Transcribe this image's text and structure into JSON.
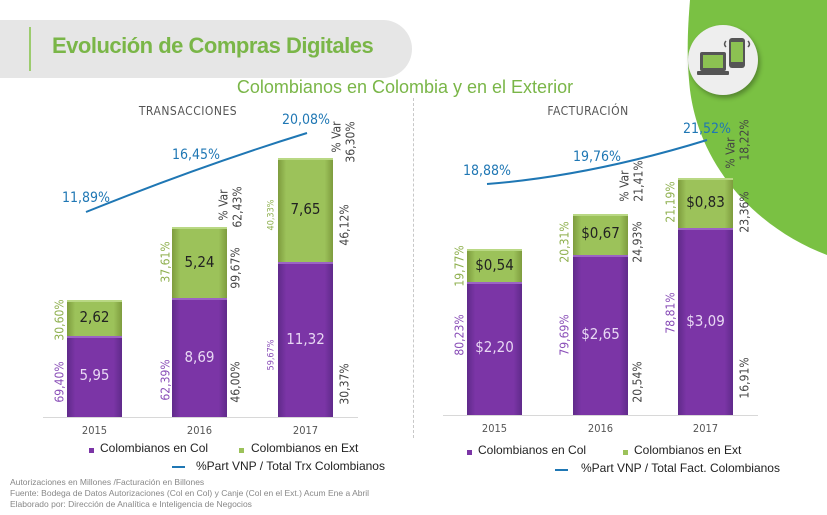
{
  "header": {
    "title": "Evolución de Compras Digitales",
    "subtitle": "Colombianos en Colombia y en el Exterior",
    "icon": "laptop-and-phone-icon"
  },
  "colors": {
    "col": "#7b35a6",
    "ext": "#9cc25a",
    "line": "#1f77b4",
    "brand_green": "#7ab648"
  },
  "chart_data": [
    {
      "type": "bar",
      "stacked": true,
      "title": "TRANSACCIONES",
      "categories": [
        "2015",
        "2016",
        "2017"
      ],
      "series": [
        {
          "name": "Colombianos en Col",
          "values": [
            5.95,
            8.69,
            11.32
          ],
          "labels": [
            "5,95",
            "8,69",
            "11,32"
          ],
          "share": [
            "69,40%",
            "62,39%",
            "59,67%"
          ],
          "var": [
            "",
            "46,00%",
            "30,37%"
          ]
        },
        {
          "name": "Colombianos en Ext",
          "values": [
            2.62,
            5.24,
            7.65
          ],
          "labels": [
            "2,62",
            "5,24",
            "7,65"
          ],
          "share": [
            "30,60%",
            "37,61%",
            "40,33%"
          ],
          "var": [
            "",
            "99,67%",
            "46,12%"
          ]
        }
      ],
      "total_var_label": "% Var",
      "total_var": [
        "",
        "62,43%",
        "36,30%"
      ],
      "line": {
        "name": "%Part VNP / Total Trx Colombianos",
        "values": [
          11.89,
          16.45,
          20.08
        ],
        "labels": [
          "11,89%",
          "16,45%",
          "20,08%"
        ]
      }
    },
    {
      "type": "bar",
      "stacked": true,
      "title": "FACTURACIÓN",
      "categories": [
        "2015",
        "2016",
        "2017"
      ],
      "series": [
        {
          "name": "Colombianos en Col",
          "values": [
            2.2,
            2.65,
            3.09
          ],
          "labels": [
            "$2,20",
            "$2,65",
            "$3,09"
          ],
          "share": [
            "80,23%",
            "79,69%",
            "78,81%"
          ],
          "var": [
            "",
            "20,54%",
            "16,91%"
          ]
        },
        {
          "name": "Colombianos en Ext",
          "values": [
            0.54,
            0.67,
            0.83
          ],
          "labels": [
            "$0,54",
            "$0,67",
            "$0,83"
          ],
          "share": [
            "19,77%",
            "20,31%",
            "21,19%"
          ],
          "var": [
            "",
            "24,93%",
            "23,36%"
          ]
        }
      ],
      "total_var_label": "% Var",
      "total_var": [
        "",
        "21,41%",
        "18,22%"
      ],
      "line": {
        "name": "%Part VNP / Total Fact. Colombianos",
        "values": [
          18.88,
          19.76,
          21.52
        ],
        "labels": [
          "18,88%",
          "19,76%",
          "21,52%"
        ]
      }
    }
  ],
  "footnotes": [
    "Autorizaciones en Millones /Facturación en Billones",
    "Fuente: Bodega de Datos Autorizaciones (Col en Col) y Canje (Col en el Ext.) Acum Ene a Abril",
    "Elaborado por: Dirección de Analítica e Inteligencia de Negocios"
  ]
}
